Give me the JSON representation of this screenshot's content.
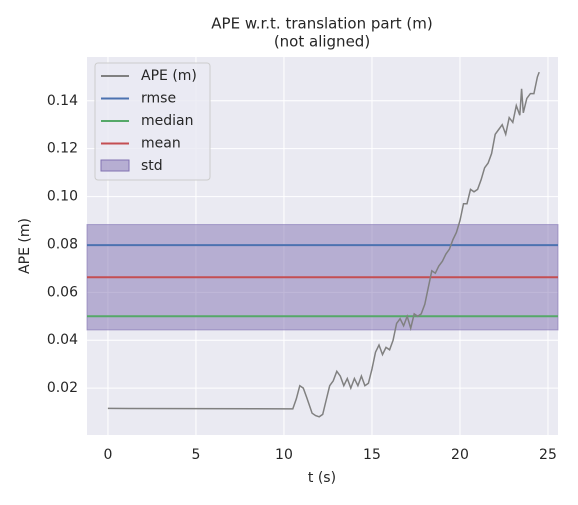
{
  "chart_data": {
    "type": "line",
    "title": "APE w.r.t. translation part (m)",
    "subtitle": "(not aligned)",
    "xlabel": "t (s)",
    "ylabel": "APE (m)",
    "xlim": [
      -1.19,
      25.57
    ],
    "ylim": [
      0.0004,
      0.1583
    ],
    "xticks": [
      0,
      5,
      10,
      15,
      20,
      25
    ],
    "yticks": [
      0.02,
      0.04,
      0.06,
      0.08,
      {
        "value": 0.1,
        "label": "0.10"
      },
      0.12,
      0.14
    ],
    "grid": true,
    "legend": "upper left",
    "series": [
      {
        "name": "APE (m)",
        "color": "#808080",
        "x": [
          0,
          10.5,
          10.7,
          10.9,
          11.1,
          11.3,
          11.6,
          11.8,
          12.0,
          12.2,
          12.4,
          12.6,
          12.8,
          13.0,
          13.2,
          13.4,
          13.6,
          13.8,
          14.0,
          14.2,
          14.4,
          14.6,
          14.8,
          15.0,
          15.2,
          15.4,
          15.6,
          15.8,
          16.0,
          16.2,
          16.4,
          16.6,
          16.8,
          17.0,
          17.2,
          17.4,
          17.6,
          17.8,
          18.0,
          18.2,
          18.4,
          18.6,
          18.8,
          19.0,
          19.2,
          19.4,
          19.6,
          19.8,
          20.0,
          20.2,
          20.4,
          20.6,
          20.8,
          21.0,
          21.2,
          21.4,
          21.6,
          21.8,
          22.0,
          22.2,
          22.4,
          22.6,
          22.8,
          23.0,
          23.2,
          23.4,
          23.5,
          23.6,
          23.8,
          24.0,
          24.2,
          24.4,
          24.5
        ],
        "values": [
          0.0115,
          0.0113,
          0.0155,
          0.021,
          0.02,
          0.016,
          0.0095,
          0.0085,
          0.008,
          0.009,
          0.015,
          0.021,
          0.023,
          0.027,
          0.025,
          0.021,
          0.024,
          0.02,
          0.024,
          0.021,
          0.025,
          0.021,
          0.022,
          0.028,
          0.035,
          0.038,
          0.034,
          0.037,
          0.036,
          0.04,
          0.047,
          0.049,
          0.046,
          0.05,
          0.045,
          0.051,
          0.05,
          0.051,
          0.055,
          0.062,
          0.069,
          0.068,
          0.071,
          0.073,
          0.076,
          0.078,
          0.082,
          0.085,
          0.09,
          0.097,
          0.097,
          0.103,
          0.102,
          0.103,
          0.107,
          0.112,
          0.114,
          0.118,
          0.126,
          0.128,
          0.13,
          0.126,
          0.133,
          0.131,
          0.138,
          0.134,
          0.145,
          0.135,
          0.141,
          0.143,
          0.143,
          0.15,
          0.152
        ]
      }
    ],
    "stats": [
      {
        "name": "rmse",
        "color": "#4c72b0",
        "value": 0.0797
      },
      {
        "name": "median",
        "color": "#55a868",
        "value": 0.05
      },
      {
        "name": "mean",
        "color": "#c44e52",
        "value": 0.0663
      }
    ],
    "std": {
      "name": "std",
      "color": "#8172b2",
      "value": 0.022
    }
  }
}
